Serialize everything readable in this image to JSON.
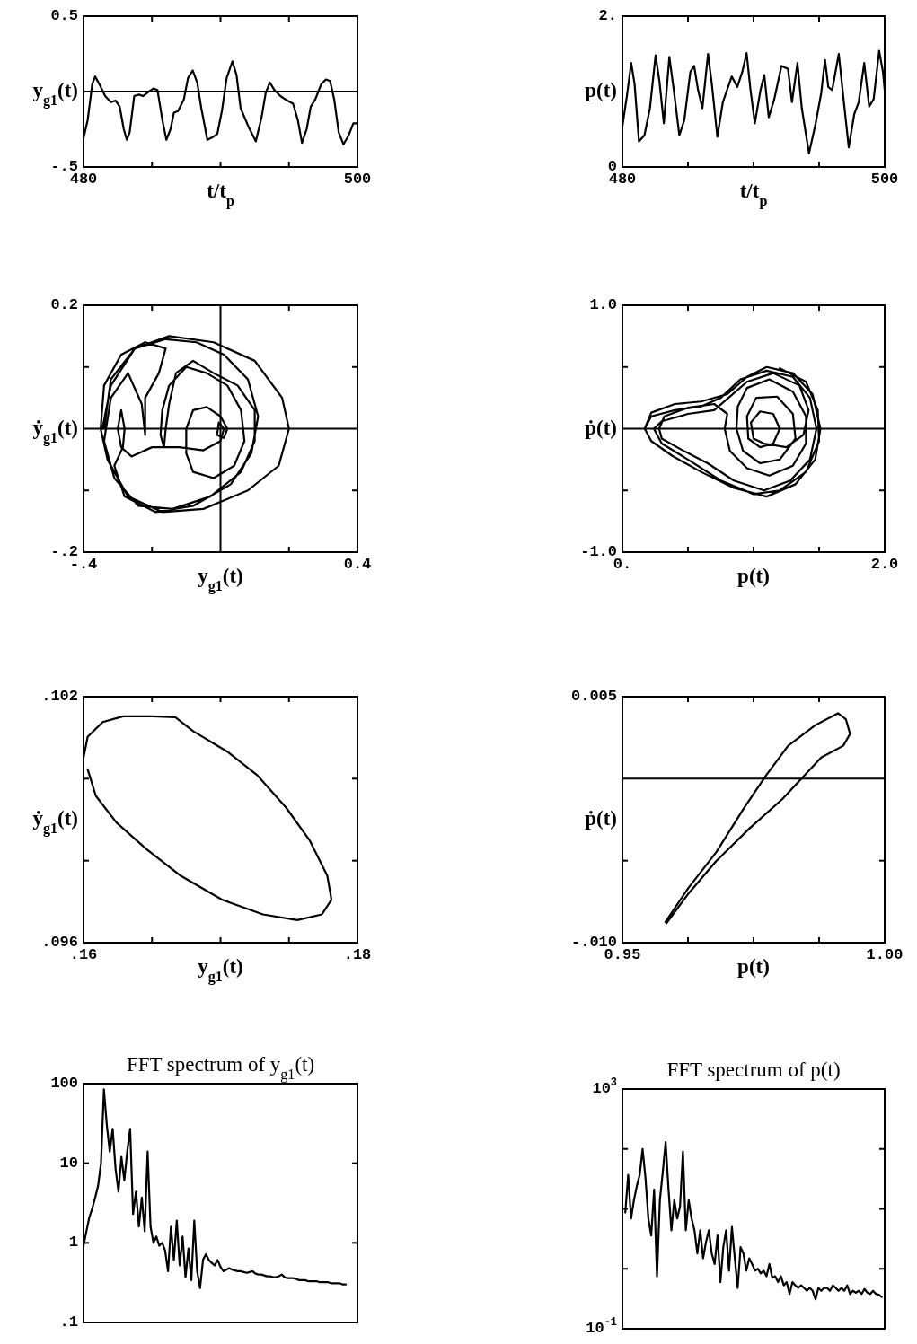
{
  "chart_data": [
    {
      "type": "line",
      "xlabel": "t/t$_{p}$",
      "ylabel": "y$_{g1}$(t)",
      "xlim": [
        480,
        500
      ],
      "ylim": [
        -0.5,
        0.5
      ],
      "xticks": [
        480,
        {
          "value": 485,
          "label": null
        },
        {
          "value": 490,
          "label": null
        },
        {
          "value": 495,
          "label": null
        },
        500
      ],
      "yticks": [
        {
          "value": -0.5,
          "label": "-.5"
        },
        0.5
      ],
      "ref_lines": [
        {
          "axis": "y",
          "value": 0,
          "color": "#000000"
        }
      ],
      "color": "#000000",
      "x": [
        480,
        480.3,
        480.64,
        480.85,
        481.15,
        481.58,
        482,
        482.35,
        482.64,
        482.94,
        483.16,
        483.37,
        483.7,
        484.05,
        484.35,
        484.78,
        485.1,
        485.4,
        485.76,
        486.05,
        486.35,
        486.6,
        486.9,
        487.33,
        487.63,
        487.97,
        488.3,
        488.6,
        489.04,
        489.47,
        489.77,
        490.1,
        490.45,
        490.87,
        491.17,
        491.47,
        492.03,
        492.58,
        493,
        493.3,
        493.6,
        493.94,
        494.37,
        494.88,
        495.3,
        495.65,
        495.95,
        496.29,
        496.59,
        496.93,
        497.36,
        497.7,
        498,
        498.3,
        498.63,
        498.98,
        499.36,
        499.7,
        500
      ],
      "values": [
        -0.31,
        -0.19,
        0.05,
        0.1,
        0.05,
        -0.03,
        -0.07,
        -0.06,
        -0.1,
        -0.25,
        -0.32,
        -0.27,
        -0.03,
        -0.02,
        -0.03,
        0,
        0.02,
        0.01,
        -0.19,
        -0.32,
        -0.25,
        -0.14,
        -0.13,
        -0.05,
        0.09,
        0.14,
        0.06,
        -0.11,
        -0.32,
        -0.3,
        -0.28,
        -0.13,
        0.09,
        0.2,
        0.11,
        -0.11,
        -0.23,
        -0.33,
        -0.17,
        -0.01,
        0.06,
        0.01,
        -0.03,
        -0.06,
        -0.08,
        -0.19,
        -0.34,
        -0.25,
        -0.1,
        -0.05,
        0.05,
        0.08,
        0.07,
        -0.05,
        -0.27,
        -0.35,
        -0.29,
        -0.21,
        -0.21
      ]
    },
    {
      "type": "line",
      "xlabel": "t/t$_{p}$",
      "ylabel": "p(t)",
      "xlim": [
        480,
        500
      ],
      "ylim": [
        0,
        2
      ],
      "xticks": [
        480,
        {
          "value": 485,
          "label": null
        },
        {
          "value": 490,
          "label": null
        },
        {
          "value": 495,
          "label": null
        },
        500
      ],
      "yticks": [
        0,
        {
          "value": 2,
          "label": "2."
        }
      ],
      "color": "#000000",
      "x": [
        480,
        480.34,
        480.67,
        480.93,
        481.26,
        481.68,
        482.1,
        482.53,
        482.82,
        483.16,
        483.58,
        483.92,
        484.34,
        484.72,
        485.18,
        485.47,
        485.77,
        486.1,
        486.53,
        486.82,
        487.24,
        487.66,
        488.34,
        488.76,
        489.14,
        489.47,
        489.77,
        490.1,
        490.53,
        490.82,
        491.16,
        491.58,
        492.13,
        492.63,
        492.93,
        493.35,
        493.68,
        494.23,
        494.74,
        495.16,
        495.45,
        495.7,
        496,
        496.5,
        496.84,
        497.26,
        497.68,
        498.02,
        498.44,
        498.82,
        499.16,
        499.58,
        499.87,
        500
      ],
      "values": [
        0.54,
        0.94,
        1.38,
        1.1,
        0.34,
        0.42,
        0.78,
        1.48,
        1.14,
        0.58,
        1.46,
        1.02,
        0.42,
        0.62,
        1.26,
        1.34,
        1.02,
        0.78,
        1.5,
        1.1,
        0.4,
        0.86,
        1.2,
        1.06,
        1.26,
        1.51,
        1.02,
        0.58,
        1.02,
        1.22,
        0.66,
        0.9,
        1.34,
        1.3,
        0.86,
        1.38,
        0.78,
        0.18,
        0.58,
        0.98,
        1.42,
        1.06,
        1.02,
        1.5,
        0.94,
        0.26,
        0.7,
        0.86,
        1.38,
        0.8,
        0.9,
        1.54,
        1.26,
        1.02
      ]
    },
    {
      "type": "line",
      "xlabel": "y$_{g1}$(t)",
      "ylabel": "ẏ$_{g1}$(t)",
      "xlim": [
        -0.4,
        0.4
      ],
      "ylim": [
        -0.2,
        0.2
      ],
      "xticks": [
        {
          "value": -0.4,
          "label": "-.4"
        },
        {
          "value": -0.2,
          "label": null
        },
        {
          "value": 0.2,
          "label": null
        },
        0.4
      ],
      "yticks": [
        {
          "value": -0.2,
          "label": "-.2"
        },
        {
          "value": -0.1,
          "label": null
        },
        {
          "value": 0.1,
          "label": null
        },
        0.2
      ],
      "ref_lines": [
        {
          "axis": "y",
          "value": 0,
          "color": "#000000"
        },
        {
          "axis": "x",
          "value": 0,
          "color": "#000000"
        }
      ],
      "color": "#000000",
      "x": [
        -0.34,
        -0.32,
        -0.25,
        -0.15,
        -0.02,
        0.1,
        0.18,
        0.2,
        0.17,
        0.08,
        -0.05,
        -0.17,
        -0.27,
        -0.33,
        -0.35,
        -0.34,
        -0.29,
        -0.22,
        -0.16,
        -0.18,
        -0.22,
        -0.22,
        -0.23,
        -0.27,
        -0.32,
        -0.34,
        -0.31,
        -0.24,
        -0.14,
        -0.03,
        0.06,
        0.1,
        0.1,
        0.05,
        -0.02,
        -0.08,
        -0.13,
        -0.15,
        -0.16,
        -0.165,
        -0.175,
        -0.17,
        -0.15,
        -0.1,
        -0.04,
        0.02,
        0.06,
        0.07,
        0.04,
        -0.02,
        -0.08,
        -0.1,
        -0.1,
        -0.08,
        -0.04,
        0,
        0.02,
        0.01,
        -0.01,
        -0.005,
        0.01,
        0,
        -0.05,
        -0.12,
        -0.2,
        -0.26,
        -0.29,
        -0.3,
        -0.29,
        -0.28,
        -0.285,
        -0.31,
        -0.28,
        -0.19,
        -0.08,
        0.03,
        0.09,
        0.11,
        0.08,
        0.01,
        -0.07,
        -0.16,
        -0.25,
        -0.32,
        -0.345
      ],
      "values": [
        0,
        0.08,
        0.13,
        0.15,
        0.14,
        0.11,
        0.05,
        0,
        -0.06,
        -0.1,
        -0.13,
        -0.135,
        -0.11,
        -0.05,
        0,
        0.07,
        0.12,
        0.14,
        0.13,
        0.09,
        0.05,
        -0.01,
        0.04,
        0.09,
        0.05,
        -0.02,
        -0.08,
        -0.125,
        -0.13,
        -0.11,
        -0.07,
        -0.02,
        0.03,
        0.07,
        0.09,
        0.11,
        0.09,
        0.04,
        0,
        -0.03,
        -0.01,
        0.03,
        0.07,
        0.1,
        0.09,
        0.07,
        0.03,
        -0.02,
        -0.06,
        -0.08,
        -0.07,
        -0.04,
        0,
        0.03,
        0.035,
        0.02,
        0,
        -0.015,
        -0.01,
        0.01,
        0,
        -0.02,
        -0.035,
        -0.03,
        -0.03,
        -0.045,
        -0.03,
        0,
        0.03,
        0,
        -0.03,
        -0.06,
        -0.11,
        -0.135,
        -0.125,
        -0.09,
        -0.04,
        0.02,
        0.08,
        0.12,
        0.14,
        0.145,
        0.13,
        0.07,
        0
      ]
    },
    {
      "type": "line",
      "xlabel": "p(t)",
      "ylabel": "ṗ(t)",
      "xlim": [
        0,
        2
      ],
      "ylim": [
        -1,
        1
      ],
      "xticks": [
        {
          "value": 0,
          "label": "0."
        },
        {
          "value": 0.5,
          "label": null
        },
        {
          "value": 1,
          "label": null
        },
        {
          "value": 1.5,
          "label": null
        },
        {
          "value": 2,
          "label": "2.0"
        }
      ],
      "yticks": [
        {
          "value": -1,
          "label": "-1.0"
        },
        {
          "value": -0.5,
          "label": null
        },
        {
          "value": 0.5,
          "label": null
        },
        {
          "value": 1,
          "label": "1.0"
        }
      ],
      "ref_lines": [
        {
          "axis": "y",
          "value": 0,
          "color": "#000000"
        }
      ],
      "color": "#000000",
      "x": [
        0.17,
        0.22,
        0.4,
        0.6,
        0.8,
        0.95,
        1.1,
        1.3,
        1.45,
        1.51,
        1.47,
        1.32,
        1.1,
        0.85,
        0.6,
        0.38,
        0.22,
        0.17,
        0.22,
        0.4,
        0.6,
        0.75,
        0.9,
        1.1,
        1.3,
        1.43,
        1.48,
        1.43,
        1.28,
        1.08,
        0.85,
        0.65,
        0.45,
        0.3,
        0.28,
        0.32,
        0.5,
        0.7,
        0.8,
        0.78,
        0.82,
        0.95,
        1.12,
        1.3,
        1.4,
        1.4,
        1.3,
        1.12,
        0.95,
        0.88,
        0.87,
        0.92,
        1.05,
        1.2,
        1.32,
        1.3,
        1.18,
        1.02,
        0.95,
        0.96,
        1.05,
        1.15,
        1.2,
        1.15,
        1.05,
        0.98,
        1,
        1.08,
        1.25,
        1.38,
        1.42,
        1.35,
        1.15,
        0.95,
        0.7,
        0.5,
        0.3,
        0.24,
        0.3,
        0.5,
        0.75,
        1,
        1.2,
        1.4,
        1.5,
        1.49,
        1.4,
        1.2
      ],
      "values": [
        0,
        0.13,
        0.2,
        0.22,
        0.28,
        0.42,
        0.5,
        0.45,
        0.28,
        0,
        -0.25,
        -0.45,
        -0.55,
        -0.48,
        -0.35,
        -0.22,
        -0.1,
        0,
        0.1,
        0.15,
        0.18,
        0.25,
        0.4,
        0.47,
        0.42,
        0.25,
        0,
        -0.25,
        -0.42,
        -0.5,
        -0.42,
        -0.28,
        -0.17,
        -0.08,
        0,
        0.1,
        0.17,
        0.2,
        0.12,
        0,
        -0.18,
        -0.32,
        -0.38,
        -0.3,
        -0.12,
        0.1,
        0.3,
        0.4,
        0.33,
        0.18,
        0,
        -0.18,
        -0.28,
        -0.25,
        -0.08,
        0.12,
        0.26,
        0.25,
        0.1,
        -0.08,
        -0.15,
        -0.12,
        0,
        0.12,
        0.14,
        0.05,
        -0.08,
        -0.12,
        -0.15,
        -0.05,
        0.15,
        0.35,
        0.45,
        0.38,
        0.15,
        0.12,
        0.06,
        0,
        -0.12,
        -0.25,
        -0.42,
        -0.53,
        -0.5,
        -0.35,
        -0.1,
        0.15,
        0.38,
        0.49
      ]
    },
    {
      "type": "line",
      "xlabel": "y$_{g1}$(t)",
      "ylabel": "ẏ$_{g1}$(t)",
      "xlim": [
        0.16,
        0.18
      ],
      "ylim": [
        0.096,
        0.102
      ],
      "xticks": [
        {
          "value": 0.16,
          "label": ".16"
        },
        {
          "value": 0.165,
          "label": null
        },
        {
          "value": 0.17,
          "label": null
        },
        {
          "value": 0.175,
          "label": null
        },
        {
          "value": 0.18,
          "label": ".18"
        }
      ],
      "yticks": [
        {
          "value": 0.096,
          "label": ".096"
        },
        {
          "value": 0.098,
          "label": null
        },
        {
          "value": 0.1,
          "label": null
        },
        {
          "value": 0.102,
          "label": ".102"
        }
      ],
      "color": "#000000",
      "x": [
        0.1603,
        0.1609,
        0.1624,
        0.1646,
        0.1671,
        0.1701,
        0.1731,
        0.1756,
        0.1774,
        0.1781,
        0.1778,
        0.1765,
        0.1748,
        0.1727,
        0.1705,
        0.168,
        0.1667,
        0.165,
        0.1629,
        0.1614,
        0.1603,
        0.16
      ],
      "values": [
        0.10023,
        0.09958,
        0.09893,
        0.09828,
        0.09763,
        0.09705,
        0.09669,
        0.09655,
        0.09669,
        0.09705,
        0.09763,
        0.0985,
        0.09929,
        0.10008,
        0.10066,
        0.10116,
        0.1015,
        0.10152,
        0.10152,
        0.10138,
        0.10102,
        0.10051
      ]
    },
    {
      "type": "line",
      "xlabel": "p(t)",
      "ylabel": "ṗ(t)",
      "xlim": [
        0.95,
        1
      ],
      "ylim": [
        -0.01,
        0.005
      ],
      "xticks": [
        0.95,
        {
          "value": 0.9625,
          "label": null
        },
        {
          "value": 0.975,
          "label": null
        },
        {
          "value": 0.9875,
          "label": null
        },
        {
          "value": 1,
          "label": "1.00"
        }
      ],
      "yticks": [
        {
          "value": -0.01,
          "label": "-.010"
        },
        {
          "value": -0.005,
          "label": null
        },
        0.005
      ],
      "ref_lines": [
        {
          "axis": "y",
          "value": 0,
          "color": "#000000"
        }
      ],
      "color": "#000000",
      "x": [
        0.9582,
        0.9626,
        0.9679,
        0.9732,
        0.9774,
        0.9816,
        0.9868,
        0.9911,
        0.9926,
        0.9934,
        0.9921,
        0.9879,
        0.9847,
        0.9805,
        0.9742,
        0.9679,
        0.9626,
        0.9584
      ],
      "values": [
        -0.00874,
        -0.00665,
        -0.00448,
        -0.00178,
        0.0002,
        0.00201,
        0.00327,
        0.00399,
        0.00363,
        0.00273,
        0.00201,
        0.00129,
        0.0002,
        -0.00124,
        -0.00304,
        -0.00502,
        -0.007,
        -0.00881
      ]
    },
    {
      "type": "line",
      "title": "FFT spectrum of y$_{g1}$(t)",
      "log": "y",
      "ylim": [
        0.1,
        100
      ],
      "yticks": [
        {
          "value": 0.1,
          "label": ".1"
        },
        1,
        10,
        100
      ],
      "tick_labels": "y",
      "color": "#000000",
      "categories": [
        null,
        null,
        null,
        null,
        null,
        null,
        null,
        null,
        null,
        null,
        null,
        null,
        null,
        null,
        null,
        null,
        null,
        null,
        null,
        null,
        null,
        null,
        null,
        null,
        null,
        null,
        null,
        null,
        null,
        null,
        null,
        null,
        null,
        null,
        null,
        null,
        null,
        null,
        null,
        null,
        null,
        null,
        null,
        null,
        null,
        null,
        null,
        null,
        null,
        null,
        null,
        null,
        null,
        null,
        null,
        null,
        null,
        null,
        null,
        null,
        null,
        null,
        null,
        null,
        null,
        null,
        null,
        null,
        null,
        null,
        null,
        null,
        null,
        null,
        null,
        null,
        null,
        null,
        null,
        null,
        null,
        null,
        null,
        null,
        null,
        null,
        null,
        null,
        null,
        null,
        null,
        null,
        null,
        null,
        null
      ],
      "values": [
        0.92,
        1.4,
        2.1,
        2.7,
        3.7,
        5.2,
        10,
        85,
        30,
        14,
        27,
        8.5,
        4.4,
        12,
        6.1,
        14,
        27,
        2.3,
        4.4,
        1.6,
        3.7,
        1.4,
        14,
        1.6,
        1,
        1.2,
        0.92,
        1,
        0.8,
        0.44,
        1.6,
        0.61,
        1.9,
        0.52,
        1.2,
        0.37,
        0.85,
        0.34,
        1.9,
        0.44,
        0.27,
        0.61,
        0.72,
        0.61,
        0.56,
        0.52,
        0.61,
        0.5,
        0.44,
        0.46,
        0.48,
        0.46,
        0.45,
        0.44,
        0.44,
        0.43,
        0.42,
        0.43,
        0.44,
        0.41,
        0.4,
        0.4,
        0.39,
        0.38,
        0.38,
        0.37,
        0.37,
        0.38,
        0.4,
        0.37,
        0.36,
        0.36,
        0.36,
        0.35,
        0.34,
        0.34,
        0.34,
        0.33,
        0.33,
        0.33,
        0.33,
        0.32,
        0.32,
        0.32,
        0.32,
        0.31,
        0.31,
        0.31,
        0.31,
        0.3,
        0.3,
        null,
        null,
        null,
        null
      ]
    },
    {
      "type": "line",
      "title": "FFT spectrum of p(t)",
      "log": "y",
      "ylim": [
        0.1,
        1000
      ],
      "yticks": [
        {
          "value": 0.1,
          "label": "10$^{-1}$"
        },
        {
          "value": 1,
          "label": null
        },
        {
          "value": 10,
          "label": null
        },
        {
          "value": 100,
          "label": null
        },
        {
          "value": 1000,
          "label": "10$^{3}$"
        }
      ],
      "tick_labels": "y",
      "color": "#000000",
      "categories": [
        null,
        null,
        null,
        null,
        null,
        null,
        null,
        null,
        null,
        null,
        null,
        null,
        null,
        null,
        null,
        null,
        null,
        null,
        null,
        null,
        null,
        null,
        null,
        null,
        null,
        null,
        null,
        null,
        null,
        null,
        null,
        null,
        null,
        null,
        null,
        null,
        null,
        null,
        null,
        null,
        null,
        null,
        null,
        null,
        null,
        null,
        null,
        null,
        null,
        null,
        null,
        null,
        null,
        null,
        null,
        null,
        null,
        null,
        null,
        null,
        null,
        null,
        null,
        null,
        null,
        null,
        null,
        null,
        null,
        null,
        null,
        null,
        null,
        null,
        null,
        null,
        null,
        null,
        null,
        null,
        null,
        null,
        null,
        null,
        null,
        null,
        null,
        null,
        null,
        null,
        null,
        null
      ],
      "values": [
        null,
        8.7,
        37,
        6.9,
        14,
        24,
        37,
        100,
        33,
        6.9,
        3.6,
        21,
        0.75,
        14,
        41,
        130,
        21,
        4.4,
        14,
        6.9,
        11,
        90,
        4.4,
        14,
        6.9,
        4.4,
        1.8,
        4.4,
        1.5,
        2.8,
        4.4,
        1.8,
        1.2,
        3.6,
        0.6,
        2.3,
        4.4,
        0.93,
        5,
        1.5,
        0.48,
        2.3,
        1.8,
        0.93,
        1.5,
        1.2,
        0.93,
        1,
        0.84,
        0.93,
        0.75,
        1.2,
        0.71,
        0.75,
        0.6,
        0.75,
        0.53,
        0.6,
        0.38,
        0.6,
        0.53,
        0.48,
        0.53,
        0.48,
        0.43,
        0.48,
        0.43,
        0.31,
        0.48,
        0.43,
        0.48,
        0.48,
        0.43,
        0.53,
        0.48,
        0.43,
        0.48,
        0.43,
        0.53,
        0.38,
        0.43,
        0.4,
        0.43,
        0.38,
        0.46,
        0.4,
        0.38,
        0.43,
        0.38,
        0.37,
        0.34,
        null
      ]
    }
  ]
}
